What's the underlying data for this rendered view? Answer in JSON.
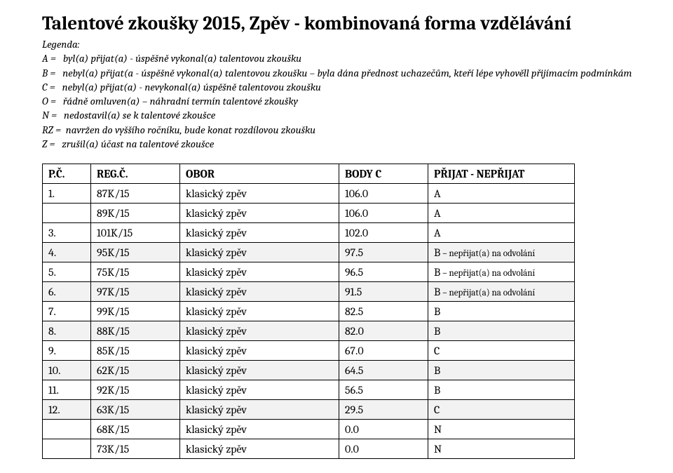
{
  "title": "Talentové zkoušky 2015, Zpěv - kombinovaná forma vzdělávání",
  "legend": {
    "heading": "Legenda:",
    "lines": [
      "A =   byl(a) přijat(a) - úspěšně vykonal(a) talentovou zkoušku",
      "B =   nebyl(a) přijat(a - úspěšně vykonal(a) talentovou zkoušku – byla dána přednost uchazečům, kteří lépe vyhověll přijímacím podmínkám",
      "C =   nebyl(a) přijat(a) - nevykonal(a) úspěšně talentovou zkoušku",
      "O =   řádně omluven(a) – náhradní termín talentové zkoušky",
      "N =   nedostavil(a) se k talentové zkoušce",
      "RZ =  navržen do vyššího ročníku, bude konat rozdílovou zkoušku",
      "Z =   zrušil(a) účast na talentové zkoušce"
    ]
  },
  "table": {
    "headers": {
      "pc": "P.Č.",
      "reg": "REG.Č.",
      "obor": "OBOR",
      "body": "BODY C",
      "prijat": "PŘIJAT - NEPŘIJAT"
    },
    "rows": [
      {
        "pc": "1.",
        "reg": "87K/15",
        "obor": "klasický zpěv",
        "body": "106.0",
        "prijat": "A",
        "note": "",
        "shade": false
      },
      {
        "pc": "",
        "reg": "89K/15",
        "obor": "klasický zpěv",
        "body": "106.0",
        "prijat": "A",
        "note": "",
        "shade": false
      },
      {
        "pc": "3.",
        "reg": "101K/15",
        "obor": "klasický zpěv",
        "body": "102.0",
        "prijat": "A",
        "note": "",
        "shade": false
      },
      {
        "pc": "4.",
        "reg": "95K/15",
        "obor": "klasický zpěv",
        "body": "97.5",
        "prijat": "B",
        "note": " – nepřijat(a) na odvolání",
        "shade": true
      },
      {
        "pc": "5.",
        "reg": "75K/15",
        "obor": "klasický zpěv",
        "body": "96.5",
        "prijat": "B",
        "note": " – nepřijat(a) na odvolání",
        "shade": false
      },
      {
        "pc": "6.",
        "reg": "97K/15",
        "obor": "klasický zpěv",
        "body": "91.5",
        "prijat": "B",
        "note": " – nepřijat(a) na odvolání",
        "shade": true
      },
      {
        "pc": "7.",
        "reg": "99K/15",
        "obor": "klasický zpěv",
        "body": "82.5",
        "prijat": "B",
        "note": "",
        "shade": false
      },
      {
        "pc": "8.",
        "reg": "88K/15",
        "obor": "klasický zpěv",
        "body": "82.0",
        "prijat": "B",
        "note": "",
        "shade": true
      },
      {
        "pc": "9.",
        "reg": "85K/15",
        "obor": "klasický zpěv",
        "body": "67.0",
        "prijat": "C",
        "note": "",
        "shade": false
      },
      {
        "pc": "10.",
        "reg": "62K/15",
        "obor": "klasický zpěv",
        "body": "64.5",
        "prijat": "B",
        "note": "",
        "shade": true
      },
      {
        "pc": "11.",
        "reg": "92K/15",
        "obor": "klasický zpěv",
        "body": "56.5",
        "prijat": "B",
        "note": "",
        "shade": false
      },
      {
        "pc": "12.",
        "reg": "63K/15",
        "obor": "klasický zpěv",
        "body": "29.5",
        "prijat": "C",
        "note": "",
        "shade": true
      },
      {
        "pc": "",
        "reg": "68K/15",
        "obor": "klasický zpěv",
        "body": "0.0",
        "prijat": "N",
        "note": "",
        "shade": false
      },
      {
        "pc": "",
        "reg": "73K/15",
        "obor": "klasický zpěv",
        "body": "0.0",
        "prijat": "N",
        "note": "",
        "shade": false
      }
    ]
  },
  "style": {
    "alt_row_bg": "#f2f2f2",
    "border_color": "#000000",
    "page_bg": "#ffffff"
  }
}
